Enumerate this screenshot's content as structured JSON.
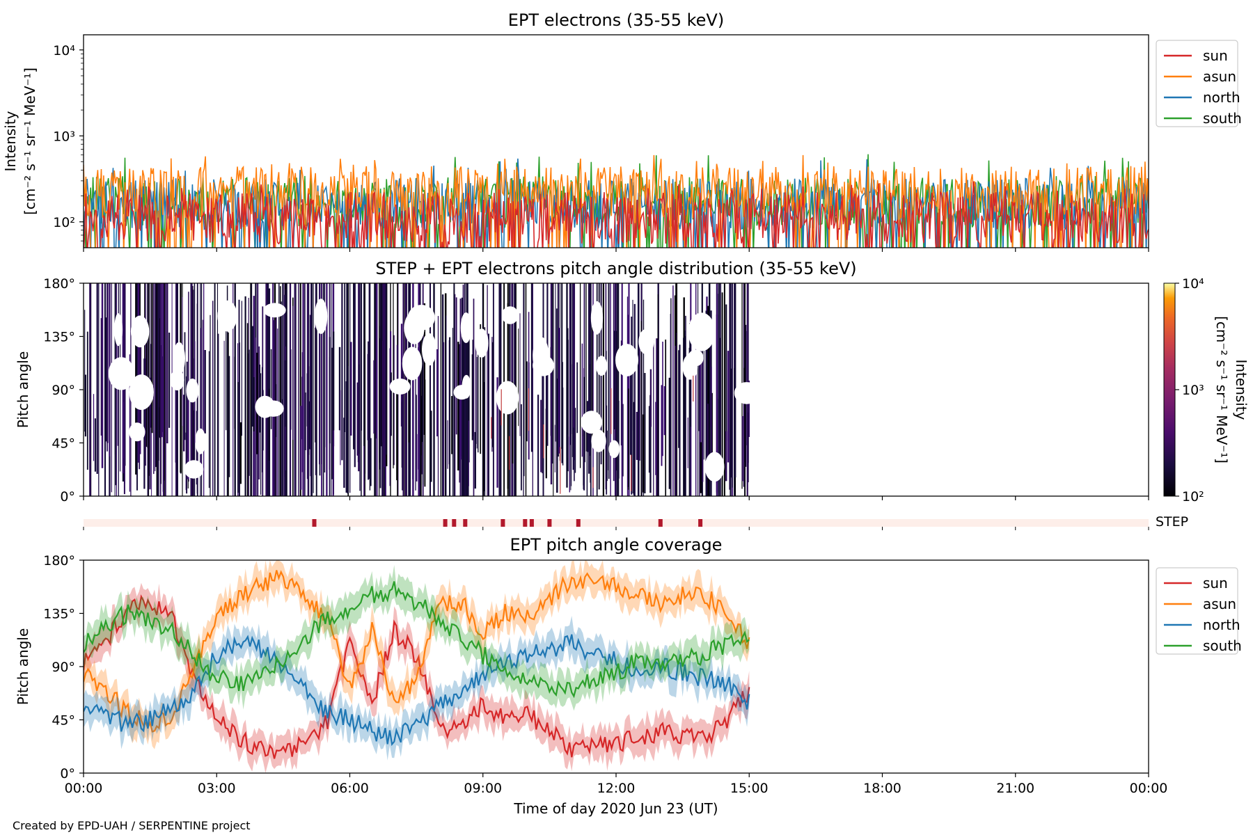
{
  "figure": {
    "credit": "Created by EPD-UAH / SERPENTINE project",
    "xlabel": "Time of day 2020 Jun 23 (UT)",
    "x_ticks": [
      "00:00",
      "03:00",
      "06:00",
      "09:00",
      "12:00",
      "15:00",
      "18:00",
      "21:00",
      "00:00"
    ]
  },
  "colors": {
    "sun": "#d62728",
    "asun": "#ff7f0e",
    "north": "#1f77b4",
    "south": "#2ca02c",
    "step_bar_bg": "#fdeee9",
    "step_mark": "#b2182b"
  },
  "chart_data": [
    {
      "type": "line",
      "title": "EPT electrons (35-55 keV)",
      "ylabel_line1": "Intensity",
      "ylabel_line2": "[cm⁻² s⁻¹ sr⁻¹ MeV⁻¹]",
      "yscale": "log",
      "ylim": [
        50,
        15000
      ],
      "y_ticks": [
        {
          "value": 100,
          "label": "10²"
        },
        {
          "value": 1000,
          "label": "10³"
        },
        {
          "value": 10000,
          "label": "10⁴"
        }
      ],
      "xlim_hours": [
        0,
        24
      ],
      "legend_placement": "outside-right-top",
      "series": [
        {
          "name": "sun",
          "typical": 110,
          "peak": 300
        },
        {
          "name": "asun",
          "typical": 220,
          "peak": 600
        },
        {
          "name": "north",
          "typical": 160,
          "peak": 550
        },
        {
          "name": "south",
          "typical": 170,
          "peak": 650
        }
      ]
    },
    {
      "type": "heatmap",
      "title": "STEP + EPT electrons pitch angle distribution (35-55 keV)",
      "ylabel": "Pitch angle",
      "ylim": [
        0,
        180
      ],
      "y_ticks": [
        {
          "value": 0,
          "label": "0°"
        },
        {
          "value": 45,
          "label": "45°"
        },
        {
          "value": 90,
          "label": "90°"
        },
        {
          "value": 135,
          "label": "135°"
        },
        {
          "value": 180,
          "label": "180°"
        }
      ],
      "data_end_hour": 15,
      "colorbar": {
        "label_line1": "Intensity",
        "label_line2": "[cm⁻² s⁻¹ sr⁻¹ MeV⁻¹]",
        "scale": "log",
        "range": [
          100,
          10000
        ],
        "ticks": [
          {
            "value": 100,
            "label": "10²"
          },
          {
            "value": 1000,
            "label": "10³"
          },
          {
            "value": 10000,
            "label": "10⁴"
          }
        ]
      }
    },
    {
      "type": "table",
      "label": "STEP",
      "step_times_hours": [
        5.2,
        8.15,
        8.35,
        8.6,
        9.45,
        9.95,
        10.1,
        10.5,
        11.15,
        13.0,
        13.9
      ]
    },
    {
      "type": "line",
      "title": "EPT pitch angle coverage",
      "ylabel": "Pitch angle",
      "ylim": [
        0,
        180
      ],
      "y_ticks": [
        {
          "value": 0,
          "label": "0°"
        },
        {
          "value": 45,
          "label": "45°"
        },
        {
          "value": 90,
          "label": "90°"
        },
        {
          "value": 135,
          "label": "135°"
        },
        {
          "value": 180,
          "label": "180°"
        }
      ],
      "data_end_hour": 15,
      "legend_placement": "outside-right-top",
      "series": [
        {
          "name": "sun",
          "x_hours": [
            0,
            0.5,
            1,
            1.5,
            2,
            2.5,
            3,
            3.5,
            4,
            4.5,
            5,
            5.5,
            6,
            6.5,
            7,
            7.5,
            8,
            8.5,
            9,
            9.5,
            10,
            10.5,
            11,
            11.5,
            12,
            12.5,
            13,
            13.5,
            14,
            14.5,
            15
          ],
          "values": [
            95,
            110,
            140,
            145,
            130,
            80,
            45,
            30,
            20,
            18,
            25,
            45,
            110,
            60,
            120,
            100,
            40,
            35,
            60,
            45,
            50,
            35,
            20,
            25,
            25,
            30,
            35,
            30,
            30,
            45,
            70
          ]
        },
        {
          "name": "asun",
          "x_hours": [
            0,
            0.5,
            1,
            1.5,
            2,
            2.5,
            3,
            3.5,
            4,
            4.5,
            5,
            5.5,
            6,
            6.5,
            7,
            7.5,
            8,
            8.5,
            9,
            9.5,
            10,
            10.5,
            11,
            11.5,
            12,
            12.5,
            13,
            13.5,
            14,
            14.5,
            15
          ],
          "values": [
            85,
            70,
            50,
            40,
            50,
            90,
            130,
            150,
            160,
            165,
            150,
            130,
            70,
            120,
            60,
            80,
            140,
            145,
            120,
            135,
            130,
            145,
            165,
            160,
            160,
            150,
            145,
            150,
            150,
            135,
            110
          ]
        },
        {
          "name": "north",
          "x_hours": [
            0,
            0.5,
            1,
            1.5,
            2,
            2.5,
            3,
            3.5,
            4,
            4.5,
            5,
            5.5,
            6,
            6.5,
            7,
            7.5,
            8,
            8.5,
            9,
            9.5,
            10,
            10.5,
            11,
            11.5,
            12,
            12.5,
            13,
            13.5,
            14,
            14.5,
            15
          ],
          "values": [
            60,
            50,
            40,
            45,
            55,
            70,
            100,
            110,
            105,
            90,
            70,
            50,
            45,
            35,
            30,
            40,
            55,
            70,
            85,
            95,
            100,
            105,
            110,
            100,
            95,
            85,
            90,
            85,
            80,
            75,
            60
          ]
        },
        {
          "name": "south",
          "x_hours": [
            0,
            0.5,
            1,
            1.5,
            2,
            2.5,
            3,
            3.5,
            4,
            4.5,
            5,
            5.5,
            6,
            6.5,
            7,
            7.5,
            8,
            8.5,
            9,
            9.5,
            10,
            10.5,
            11,
            11.5,
            12,
            12.5,
            13,
            13.5,
            14,
            14.5,
            15
          ],
          "values": [
            110,
            125,
            135,
            130,
            120,
            100,
            80,
            75,
            80,
            95,
            115,
            130,
            140,
            150,
            155,
            145,
            130,
            115,
            100,
            90,
            80,
            75,
            70,
            80,
            85,
            95,
            90,
            95,
            100,
            110,
            120
          ]
        }
      ]
    }
  ]
}
